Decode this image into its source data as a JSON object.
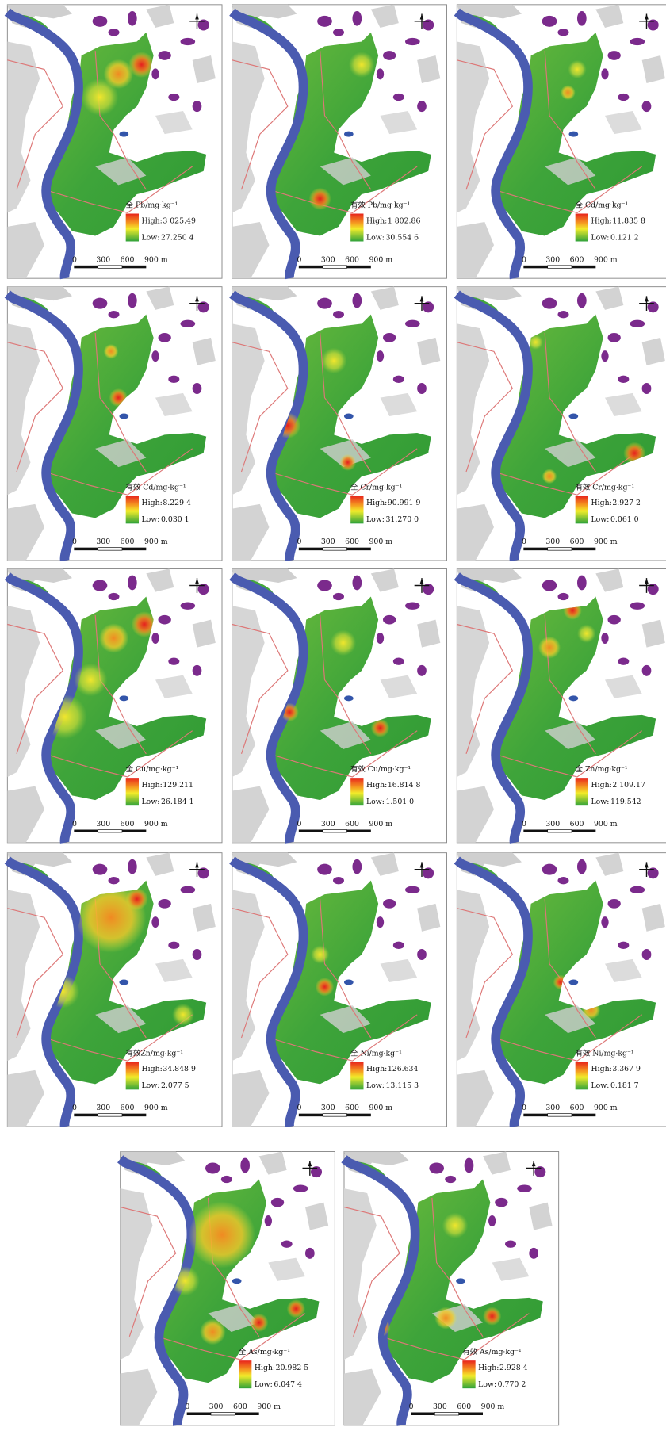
{
  "panels": [
    {
      "title": "全 Pb/mg·kg⁻¹",
      "high": "3 025.49",
      "low": "27.250 4"
    },
    {
      "title": "有效 Pb/mg·kg⁻¹",
      "high": "1 802.86",
      "low": "30.554 6"
    },
    {
      "title": "全 Cd/mg·kg⁻¹",
      "high": "11.835 8",
      "low": "0.121 2"
    },
    {
      "title": "有效 Cd/mg·kg⁻¹",
      "high": "8.229 4",
      "low": "0.030 1"
    },
    {
      "title": "全 Cr/mg·kg⁻¹",
      "high": "90.991 9",
      "low": "31.270 0"
    },
    {
      "title": "有效 Cr/mg·kg⁻¹",
      "high": "2.927 2",
      "low": "0.061 0"
    },
    {
      "title": "全 Cu/mg·kg⁻¹",
      "high": "129.211",
      "low": "26.184 1"
    },
    {
      "title": "有效 Cu/mg·kg⁻¹",
      "high": "16.814 8",
      "low": "1.501 0"
    },
    {
      "title": "全 Zn/mg·kg⁻¹",
      "high": "2 109.17",
      "low": "119.542"
    },
    {
      "title": "有效Zn/mg·kg⁻¹",
      "high": "34.848 9",
      "low": "2.077 5"
    },
    {
      "title": "全 Ni/mg·kg⁻¹",
      "high": "126.634",
      "low": "13.115 3"
    },
    {
      "title": "有效 Ni/mg·kg⁻¹",
      "high": "3.367 9",
      "low": "0.181 7"
    },
    {
      "title": "全 As/mg·kg⁻¹",
      "high": "20.982 5",
      "low": "6.047 4"
    },
    {
      "title": "有效 As/mg·kg⁻¹",
      "high": "2.928 4",
      "low": "0.770 2"
    }
  ],
  "legend": {
    "high": "High:",
    "low": "Low:"
  },
  "scale_labels": [
    "0",
    "300",
    "600",
    "900 m"
  ]
}
